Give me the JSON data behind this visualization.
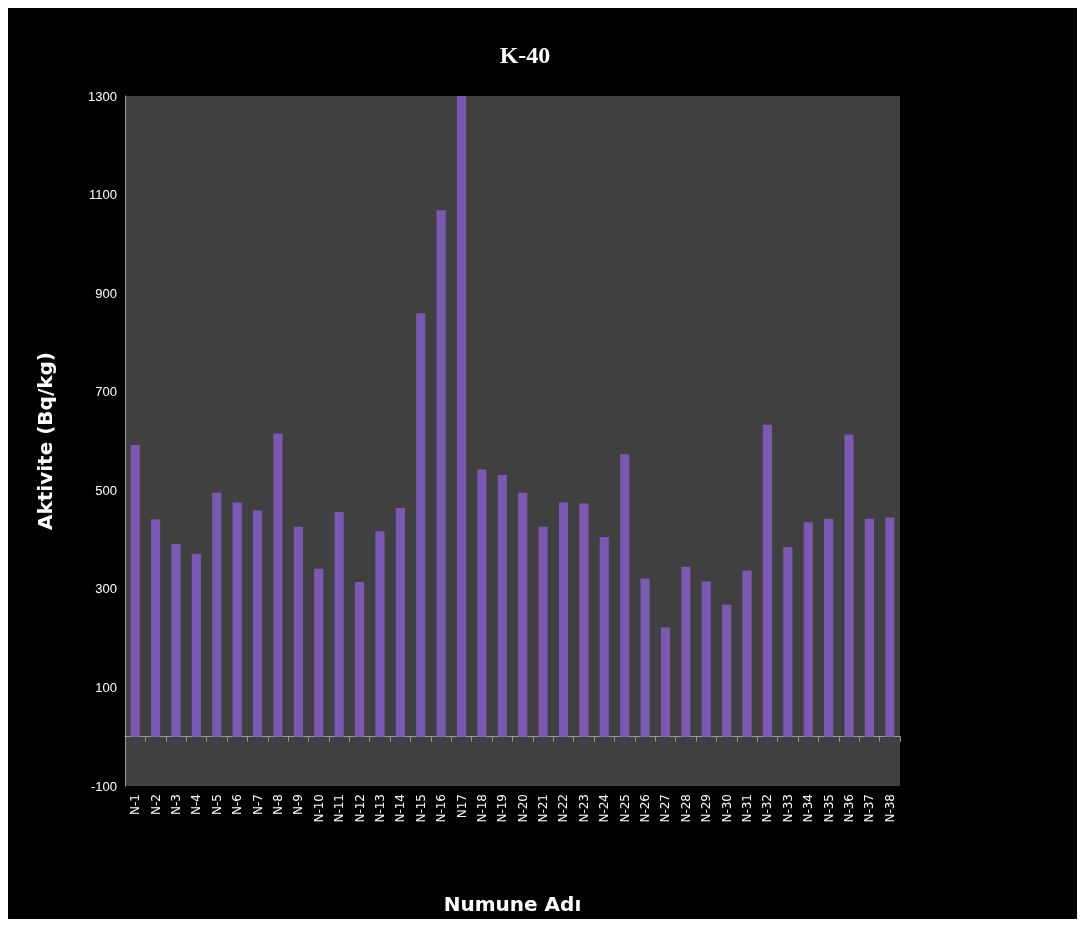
{
  "chart_data": {
    "type": "bar",
    "title": "K-40",
    "xlabel": "Numune Adı",
    "ylabel": "Aktivite (Bq/kg)",
    "categories": [
      "N-1",
      "N-2",
      "N-3",
      "N-4",
      "N-5",
      "N-6",
      "N-7",
      "N-8",
      "N-9",
      "N-10",
      "N-11",
      "N-12",
      "N-13",
      "N-14",
      "N-15",
      "N-16",
      "N17",
      "N-18",
      "N-19",
      "N-20",
      "N-21",
      "N-22",
      "N-23",
      "N-24",
      "N-25",
      "N-26",
      "N-27",
      "N-28",
      "N-29",
      "N-30",
      "N-31",
      "N-32",
      "N-33",
      "N-34",
      "N-35",
      "N-36",
      "N-37",
      "N-38"
    ],
    "values": [
      592,
      441,
      391,
      371,
      495,
      475,
      459,
      615,
      426,
      341,
      456,
      314,
      417,
      464,
      859,
      1068,
      1300,
      542,
      531,
      495,
      426,
      475,
      473,
      405,
      573,
      321,
      222,
      345,
      315,
      268,
      337,
      633,
      385,
      435,
      442,
      613,
      442,
      445
    ],
    "color": "#7a58b4",
    "ylim": [
      -100,
      1300
    ],
    "yticks": [
      -100,
      100,
      300,
      500,
      700,
      900,
      1100,
      1300
    ],
    "grid": false
  }
}
